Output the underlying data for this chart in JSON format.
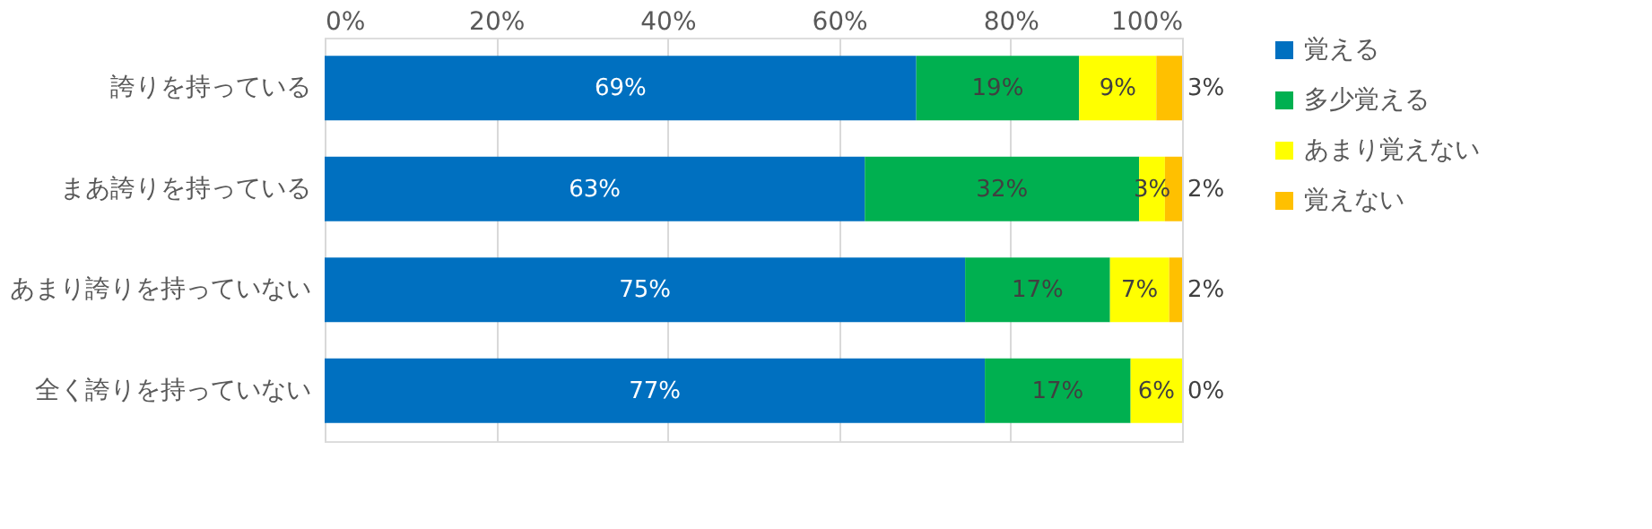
{
  "chart_data": {
    "type": "bar",
    "orientation": "horizontal",
    "stacked": true,
    "categories": [
      "誇りを持っている",
      "まあ誇りを持っている",
      "あまり誇りを持っていない",
      "全く誇りを持っていない"
    ],
    "series": [
      {
        "name": "覚える",
        "color": "#0070c0",
        "values": [
          69,
          63,
          74.7,
          77
        ],
        "value_labels": [
          "69%",
          "63%",
          "75%",
          "77%"
        ]
      },
      {
        "name": "多少覚える",
        "color": "#00b050",
        "values": [
          19,
          32,
          16.9,
          17
        ],
        "value_labels": [
          "19%",
          "32%",
          "17%",
          "17%"
        ]
      },
      {
        "name": "あまり覚えない",
        "color": "#ffff00",
        "values": [
          9,
          3,
          6.9,
          6
        ],
        "value_labels": [
          "9%",
          "3%",
          "7%",
          "6%"
        ]
      },
      {
        "name": "覚えない",
        "color": "#ffc000",
        "values": [
          3,
          2,
          1.5,
          0
        ],
        "value_labels": [
          "3%",
          "2%",
          "2%",
          "0%"
        ]
      }
    ],
    "xlim": [
      0,
      100
    ],
    "xticks": [
      {
        "value": 0,
        "label": "0%"
      },
      {
        "value": 20,
        "label": "20%"
      },
      {
        "value": 40,
        "label": "40%"
      },
      {
        "value": 60,
        "label": "60%"
      },
      {
        "value": 80,
        "label": "80%"
      },
      {
        "value": 100,
        "label": "100%"
      }
    ],
    "grid": "x",
    "legend": "right"
  }
}
